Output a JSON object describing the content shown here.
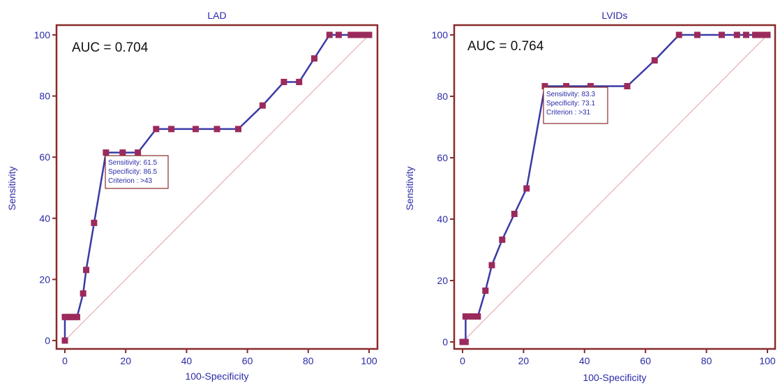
{
  "chart_data": [
    {
      "type": "line",
      "title": "LAD",
      "xlabel": "100-Specificity",
      "ylabel": "Sensitivity",
      "xlim": [
        0,
        100
      ],
      "ylim": [
        0,
        100
      ],
      "xticks": [
        "0",
        "20",
        "40",
        "60",
        "80",
        "100"
      ],
      "yticks": [
        "0",
        "20",
        "40",
        "60",
        "80",
        "100"
      ],
      "annotation": "AUC = 0.704",
      "criterion_box": {
        "lines": [
          "Sensitivity: 61.5",
          "Specificity: 86.5",
          "Criterion : >43"
        ]
      },
      "x": [
        0,
        0,
        1,
        2,
        3,
        4,
        6,
        7,
        9.6,
        13.5,
        19,
        24,
        30,
        35,
        43,
        50,
        57,
        65,
        72,
        77,
        82,
        87,
        90,
        94,
        95,
        96,
        97,
        98,
        99,
        100
      ],
      "y": [
        0,
        7.7,
        7.7,
        7.7,
        7.7,
        7.7,
        15.4,
        23.1,
        38.5,
        61.5,
        61.5,
        61.5,
        69.2,
        69.2,
        69.2,
        69.2,
        69.2,
        76.9,
        84.6,
        84.6,
        92.3,
        100,
        100,
        100,
        100,
        100,
        100,
        100,
        100,
        100
      ],
      "reference_line": [
        [
          0,
          0
        ],
        [
          100,
          100
        ]
      ],
      "colors": {
        "curve": "#3a3aa6",
        "marker": "#9b2a5c",
        "reference": "#e0a0a0",
        "frame": "#8a2a2a"
      }
    },
    {
      "type": "line",
      "title": "LVIDs",
      "xlabel": "100-Specificity",
      "ylabel": "Sensitivity",
      "xlim": [
        0,
        100
      ],
      "ylim": [
        0,
        100
      ],
      "xticks": [
        "0",
        "20",
        "40",
        "60",
        "80",
        "100"
      ],
      "yticks": [
        "0",
        "20",
        "40",
        "60",
        "80",
        "100"
      ],
      "annotation": "AUC = 0.764",
      "criterion_box": {
        "lines": [
          "Sensitivity: 83.3",
          "Specificity: 73.1",
          "Criterion : >31"
        ]
      },
      "x": [
        0,
        1,
        1,
        3,
        5,
        7.5,
        9.6,
        13,
        17,
        21,
        27,
        34,
        42,
        54,
        63,
        71,
        77,
        85,
        90,
        93,
        96,
        97,
        98,
        99,
        100
      ],
      "y": [
        0,
        0,
        8.3,
        8.3,
        8.3,
        16.7,
        25,
        33.3,
        41.7,
        50,
        83.3,
        83.3,
        83.3,
        83.3,
        91.7,
        100,
        100,
        100,
        100,
        100,
        100,
        100,
        100,
        100,
        100
      ],
      "reference_line": [
        [
          0,
          0
        ],
        [
          100,
          100
        ]
      ],
      "colors": {
        "curve": "#3a3aa6",
        "marker": "#9b2a5c",
        "reference": "#e0a0a0",
        "frame": "#8a2a2a"
      }
    }
  ]
}
